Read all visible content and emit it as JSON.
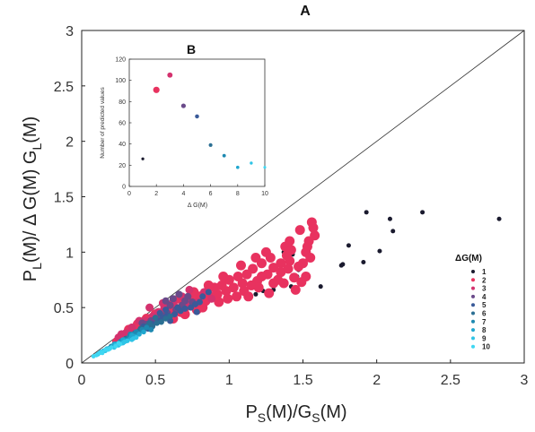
{
  "chart_data": [
    {
      "panel": "A",
      "type": "scatter",
      "title": "A",
      "xlabel_main": "P",
      "xlabel_sub1": "S",
      "xlabel_mid": "(M)/G",
      "xlabel_sub2": "S",
      "xlabel_end": "(M)",
      "ylabel_main": "P",
      "ylabel_sub1": "L",
      "ylabel_mid": "(M)/  Δ G(M) G",
      "ylabel_sub2": "L",
      "ylabel_end": "(M)",
      "xlim": [
        0,
        3
      ],
      "ylim": [
        0,
        3
      ],
      "xticks": [
        "0",
        "0.5",
        "1",
        "1.5",
        "2",
        "2.5",
        "3"
      ],
      "yticks": [
        "0",
        "0.5",
        "1",
        "1.5",
        "2",
        "2.5",
        "3"
      ],
      "diagonal": [
        [
          0,
          0
        ],
        [
          3,
          3
        ]
      ],
      "legend_title": "ΔG(M)",
      "legend_position": "right",
      "series": [
        {
          "name": "1",
          "color": "#1a1a2e",
          "size": 2.5,
          "points": [
            [
              2.83,
              1.3
            ],
            [
              2.31,
              1.36
            ],
            [
              2.11,
              1.19
            ],
            [
              2.09,
              1.3
            ],
            [
              2.02,
              1.01
            ],
            [
              1.93,
              1.36
            ],
            [
              1.91,
              0.91
            ],
            [
              1.81,
              1.06
            ],
            [
              1.77,
              0.89
            ],
            [
              1.76,
              0.88
            ],
            [
              1.62,
              0.69
            ],
            [
              1.53,
              0.8
            ],
            [
              1.47,
              0.84
            ],
            [
              1.46,
              0.78
            ],
            [
              1.42,
              0.69
            ],
            [
              1.37,
              1.0
            ],
            [
              1.3,
              0.66
            ],
            [
              1.3,
              0.69
            ],
            [
              1.23,
              0.65
            ],
            [
              1.18,
              0.62
            ],
            [
              1.59,
              1.15
            ],
            [
              1.43,
              0.98
            ]
          ]
        },
        {
          "name": "2",
          "color": "#e8325f",
          "size": 5.5,
          "points": [
            [
              1.56,
              1.27
            ],
            [
              1.57,
              1.22
            ],
            [
              1.54,
              1.1
            ],
            [
              1.58,
              1.15
            ],
            [
              1.52,
              1.0
            ],
            [
              1.55,
              0.95
            ],
            [
              1.5,
              0.9
            ],
            [
              1.47,
              0.87
            ],
            [
              1.52,
              0.78
            ],
            [
              1.49,
              0.73
            ],
            [
              1.44,
              0.77
            ],
            [
              1.41,
              0.92
            ],
            [
              1.39,
              0.97
            ],
            [
              1.38,
              1.05
            ],
            [
              1.41,
              1.1
            ],
            [
              1.35,
              0.82
            ],
            [
              1.33,
              0.75
            ],
            [
              1.37,
              0.72
            ],
            [
              1.3,
              0.86
            ],
            [
              1.28,
              0.95
            ],
            [
              1.26,
              0.8
            ],
            [
              1.22,
              0.78
            ],
            [
              1.25,
              1.0
            ],
            [
              1.22,
              0.9
            ],
            [
              1.19,
              0.74
            ],
            [
              1.16,
              0.85
            ],
            [
              1.12,
              0.8
            ],
            [
              1.15,
              0.7
            ],
            [
              1.09,
              0.72
            ],
            [
              1.06,
              0.78
            ],
            [
              1.03,
              0.68
            ],
            [
              1.0,
              0.75
            ],
            [
              0.98,
              0.65
            ],
            [
              0.95,
              0.7
            ],
            [
              0.92,
              0.62
            ],
            [
              0.9,
              0.68
            ],
            [
              0.87,
              0.6
            ],
            [
              0.84,
              0.56
            ],
            [
              0.8,
              0.6
            ],
            [
              0.77,
              0.52
            ],
            [
              0.74,
              0.57
            ],
            [
              0.7,
              0.5
            ],
            [
              0.67,
              0.46
            ],
            [
              0.63,
              0.5
            ],
            [
              0.6,
              0.43
            ],
            [
              0.57,
              0.47
            ],
            [
              0.53,
              0.4
            ],
            [
              0.5,
              0.44
            ],
            [
              0.47,
              0.36
            ],
            [
              0.44,
              0.4
            ],
            [
              0.41,
              0.33
            ],
            [
              0.38,
              0.35
            ],
            [
              0.35,
              0.28
            ],
            [
              0.32,
              0.3
            ],
            [
              0.29,
              0.24
            ],
            [
              0.26,
              0.22
            ],
            [
              0.24,
              0.19
            ],
            [
              1.1,
              0.65
            ],
            [
              1.05,
              0.6
            ],
            [
              0.99,
              0.58
            ],
            [
              1.2,
              0.68
            ],
            [
              1.3,
              0.72
            ],
            [
              1.45,
              0.66
            ],
            [
              1.35,
              0.9
            ],
            [
              1.18,
              0.95
            ],
            [
              1.08,
              0.88
            ],
            [
              0.96,
              0.78
            ],
            [
              0.86,
              0.7
            ],
            [
              0.76,
              0.64
            ],
            [
              0.66,
              0.58
            ],
            [
              0.58,
              0.52
            ],
            [
              0.78,
              0.48
            ],
            [
              0.7,
              0.44
            ],
            [
              0.62,
              0.4
            ],
            [
              1.42,
              1.02
            ],
            [
              1.48,
              1.2
            ],
            [
              1.53,
              1.05
            ],
            [
              1.4,
              0.85
            ],
            [
              1.27,
              0.63
            ],
            [
              1.13,
              0.6
            ],
            [
              0.93,
              0.55
            ],
            [
              0.82,
              0.5
            ]
          ]
        },
        {
          "name": "3",
          "color": "#d4326e",
          "size": 4.5,
          "points": [
            [
              0.88,
              0.58
            ],
            [
              0.83,
              0.64
            ],
            [
              0.79,
              0.55
            ],
            [
              0.72,
              0.53
            ],
            [
              0.68,
              0.6
            ],
            [
              0.62,
              0.55
            ],
            [
              0.56,
              0.5
            ],
            [
              0.52,
              0.46
            ],
            [
              0.48,
              0.42
            ],
            [
              0.43,
              0.38
            ],
            [
              0.39,
              0.38
            ],
            [
              0.34,
              0.32
            ],
            [
              0.3,
              0.27
            ],
            [
              0.27,
              0.26
            ],
            [
              0.25,
              0.23
            ],
            [
              0.46,
              0.5
            ],
            [
              0.55,
              0.54
            ],
            [
              0.73,
              0.66
            ]
          ]
        },
        {
          "name": "4",
          "color": "#6a4a8a",
          "size": 4,
          "points": [
            [
              0.64,
              0.48
            ],
            [
              0.6,
              0.52
            ],
            [
              0.58,
              0.45
            ],
            [
              0.54,
              0.43
            ],
            [
              0.5,
              0.4
            ],
            [
              0.47,
              0.38
            ],
            [
              0.44,
              0.35
            ],
            [
              0.41,
              0.36
            ],
            [
              0.68,
              0.52
            ],
            [
              0.7,
              0.56
            ],
            [
              0.66,
              0.62
            ],
            [
              0.72,
              0.6
            ],
            [
              0.75,
              0.55
            ],
            [
              0.62,
              0.58
            ],
            [
              0.57,
              0.56
            ]
          ]
        },
        {
          "name": "5",
          "color": "#3a5a99",
          "size": 3.5,
          "points": [
            [
              0.42,
              0.33
            ],
            [
              0.45,
              0.31
            ],
            [
              0.48,
              0.35
            ],
            [
              0.52,
              0.38
            ],
            [
              0.55,
              0.41
            ],
            [
              0.58,
              0.43
            ],
            [
              0.6,
              0.38
            ],
            [
              0.63,
              0.44
            ],
            [
              0.67,
              0.47
            ],
            [
              0.7,
              0.49
            ],
            [
              0.74,
              0.5
            ],
            [
              0.77,
              0.53
            ],
            [
              0.8,
              0.55
            ],
            [
              0.65,
              0.5
            ],
            [
              0.57,
              0.48
            ],
            [
              0.53,
              0.45
            ],
            [
              0.82,
              0.6
            ],
            [
              0.78,
              0.46
            ],
            [
              0.86,
              0.64
            ]
          ]
        },
        {
          "name": "6",
          "color": "#2b6f93",
          "size": 3.2,
          "points": [
            [
              0.3,
              0.22
            ],
            [
              0.33,
              0.25
            ],
            [
              0.36,
              0.27
            ],
            [
              0.39,
              0.29
            ],
            [
              0.42,
              0.3
            ],
            [
              0.45,
              0.34
            ],
            [
              0.48,
              0.33
            ],
            [
              0.51,
              0.36
            ],
            [
              0.54,
              0.37
            ],
            [
              0.57,
              0.4
            ],
            [
              0.6,
              0.42
            ],
            [
              0.35,
              0.24
            ],
            [
              0.4,
              0.31
            ],
            [
              0.46,
              0.36
            ],
            [
              0.5,
              0.41
            ]
          ]
        },
        {
          "name": "7",
          "color": "#1e89b1",
          "size": 3,
          "points": [
            [
              0.2,
              0.15
            ],
            [
              0.23,
              0.17
            ],
            [
              0.26,
              0.19
            ],
            [
              0.29,
              0.21
            ],
            [
              0.32,
              0.23
            ],
            [
              0.35,
              0.26
            ],
            [
              0.38,
              0.27
            ],
            [
              0.41,
              0.3
            ],
            [
              0.44,
              0.32
            ],
            [
              0.47,
              0.3
            ],
            [
              0.27,
              0.2
            ],
            [
              0.33,
              0.26
            ],
            [
              0.37,
              0.28
            ]
          ]
        },
        {
          "name": "8",
          "color": "#20a7cf",
          "size": 2.8,
          "points": [
            [
              0.15,
              0.11
            ],
            [
              0.18,
              0.13
            ],
            [
              0.21,
              0.15
            ],
            [
              0.24,
              0.17
            ],
            [
              0.27,
              0.18
            ],
            [
              0.3,
              0.2
            ],
            [
              0.33,
              0.22
            ],
            [
              0.36,
              0.24
            ],
            [
              0.39,
              0.26
            ],
            [
              0.42,
              0.28
            ],
            [
              0.22,
              0.17
            ],
            [
              0.28,
              0.21
            ],
            [
              0.34,
              0.25
            ]
          ]
        },
        {
          "name": "9",
          "color": "#2fc4e6",
          "size": 2.6,
          "points": [
            [
              0.11,
              0.08
            ],
            [
              0.13,
              0.1
            ],
            [
              0.16,
              0.11
            ],
            [
              0.19,
              0.13
            ],
            [
              0.22,
              0.14
            ],
            [
              0.25,
              0.16
            ],
            [
              0.28,
              0.18
            ],
            [
              0.31,
              0.2
            ],
            [
              0.34,
              0.21
            ],
            [
              0.37,
              0.23
            ],
            [
              0.17,
              0.13
            ],
            [
              0.23,
              0.16
            ],
            [
              0.29,
              0.19
            ],
            [
              0.35,
              0.22
            ]
          ]
        },
        {
          "name": "10",
          "color": "#3fd7f2",
          "size": 2.4,
          "points": [
            [
              0.08,
              0.06
            ],
            [
              0.1,
              0.07
            ],
            [
              0.12,
              0.09
            ],
            [
              0.14,
              0.1
            ],
            [
              0.16,
              0.12
            ],
            [
              0.18,
              0.12
            ],
            [
              0.2,
              0.14
            ],
            [
              0.23,
              0.15
            ],
            [
              0.26,
              0.17
            ],
            [
              0.14,
              0.09
            ],
            [
              0.19,
              0.13
            ],
            [
              0.25,
              0.18
            ]
          ]
        }
      ]
    },
    {
      "panel": "B",
      "type": "scatter",
      "title": "B",
      "xlabel": "Δ G(M)",
      "ylabel": "Number of predicted values",
      "xlim": [
        0,
        10
      ],
      "ylim": [
        0,
        120
      ],
      "xticks": [
        "0",
        "2",
        "4",
        "6",
        "8",
        "10"
      ],
      "yticks": [
        "0",
        "20",
        "40",
        "60",
        "80",
        "100",
        "120"
      ],
      "x": [
        1,
        2,
        3,
        4,
        5,
        6,
        7,
        8,
        9,
        10
      ],
      "values": [
        26,
        91,
        105,
        76,
        66,
        39,
        29,
        18,
        22,
        18
      ]
    }
  ]
}
